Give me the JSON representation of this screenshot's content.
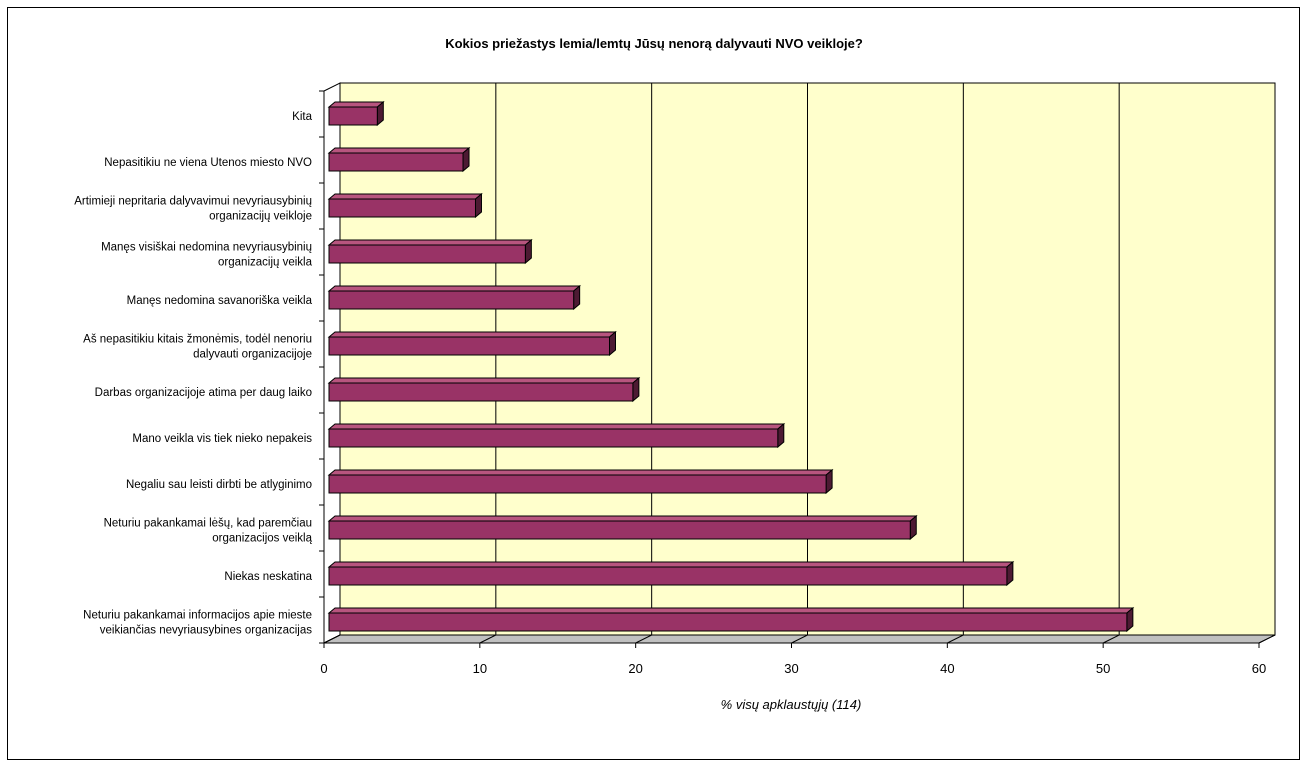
{
  "chart_data": {
    "type": "bar",
    "orientation": "horizontal",
    "title": "Kokios priežastys lemia/lemtų Jūsų nenorą dalyvauti NVO veikloje?",
    "xlabel": "% visų apklaustųjų (114)",
    "ylabel": "",
    "xlim": [
      0,
      60
    ],
    "xticks": [
      "0",
      "10",
      "20",
      "30",
      "40",
      "50",
      "60"
    ],
    "grid": true,
    "legend": "none",
    "colors": {
      "bar_front": "#993366",
      "bar_top": "#b8557f",
      "bar_side": "#4d1a33",
      "plot_background": "#ffffcc",
      "floor": "#c0c0c0"
    },
    "categories": [
      [
        "Kita"
      ],
      [
        "Nepasitikiu ne viena Utenos miesto NVO"
      ],
      [
        "Artimieji nepritaria dalyvavimui nevyriausybinių",
        "organizacijų veikloje"
      ],
      [
        "Manęs visiškai nedomina nevyriausybinių",
        "organizacijų veikla"
      ],
      [
        "Manęs nedomina savanoriška veikla"
      ],
      [
        "Aš nepasitikiu kitais žmonėmis, todėl nenoriu",
        "dalyvauti organizacijoje"
      ],
      [
        "Darbas organizacijoje atima per daug laiko"
      ],
      [
        "Mano veikla vis tiek nieko nepakeis"
      ],
      [
        "Negaliu sau leisti dirbti be atlyginimo"
      ],
      [
        "Neturiu pakankamai lėšų, kad paremčiau",
        "organizacijos veiklą"
      ],
      [
        "Niekas neskatina"
      ],
      [
        "Neturiu pakankamai informacijos apie mieste",
        "veikiančias nevyriausybines organizacijas"
      ]
    ],
    "values": [
      3.1,
      8.6,
      9.4,
      12.6,
      15.7,
      18.0,
      19.5,
      28.8,
      31.9,
      37.3,
      43.5,
      51.2
    ]
  }
}
